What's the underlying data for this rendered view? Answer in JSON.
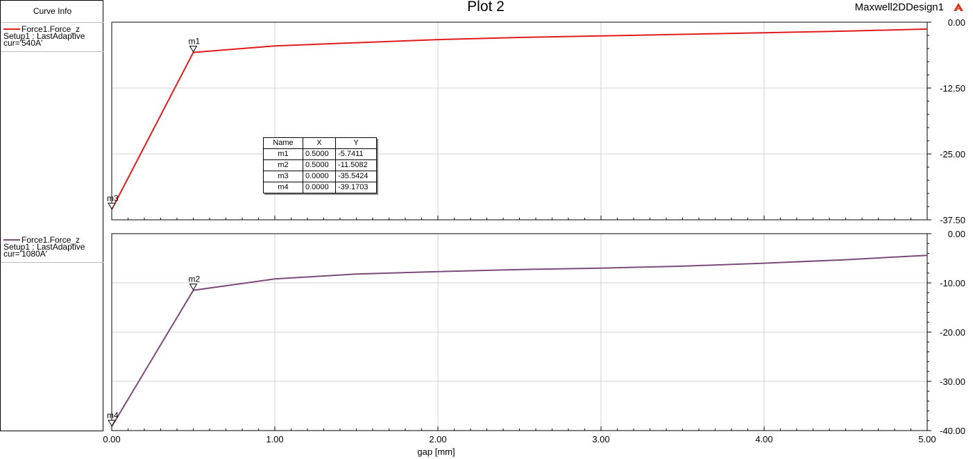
{
  "window": {
    "plot_title": "Plot 2",
    "design_name": "Maxwell2DDesign1",
    "logo_icon": "ansys-logo-icon"
  },
  "curve_info": {
    "title": "Curve Info",
    "entries": [
      {
        "name": "Force1.Force_z",
        "setup": "Setup1 : LastAdaptive",
        "variation": "cur='540A'",
        "color": "#e01b1b"
      },
      {
        "name": "Force1.Force_z",
        "setup": "Setup1 : LastAdaptive",
        "variation": "cur='1080A'",
        "color": "#7a4a78"
      }
    ]
  },
  "marker_table": {
    "headers": [
      "Name",
      "X",
      "Y"
    ],
    "rows": [
      [
        "m1",
        "0.5000",
        "-5.7411"
      ],
      [
        "m2",
        "0.5000",
        "-11.5082"
      ],
      [
        "m3",
        "0.0000",
        "-35.5424"
      ],
      [
        "m4",
        "0.0000",
        "-39.1703"
      ]
    ]
  },
  "chart_data": [
    {
      "type": "line",
      "xlabel": "gap [mm]",
      "xlim": [
        0,
        5
      ],
      "x_ticks": [
        "0.00",
        "1.00",
        "2.00",
        "3.00",
        "4.00",
        "5.00"
      ],
      "ylim": [
        -37.5,
        0
      ],
      "y_ticks": [
        "0.00",
        "-12.50",
        "-25.00",
        "-37.50"
      ],
      "grid": true,
      "series": [
        {
          "name": "Force1.Force_z",
          "color": "#e01b1b",
          "x": [
            0,
            0.5,
            1.0,
            1.5,
            2.0,
            2.5,
            3.0,
            3.5,
            4.0,
            4.5,
            5.0
          ],
          "y": [
            -35.5424,
            -5.7411,
            -4.5,
            -3.9,
            -3.3,
            -2.9,
            -2.6,
            -2.3,
            -2.0,
            -1.7,
            -1.3
          ]
        }
      ],
      "markers": [
        {
          "name": "m1",
          "x": 0.5,
          "y": -5.7411
        },
        {
          "name": "m3",
          "x": 0.0,
          "y": -35.5424
        }
      ]
    },
    {
      "type": "line",
      "xlabel": "gap [mm]",
      "xlim": [
        0,
        5
      ],
      "x_ticks": [
        "0.00",
        "1.00",
        "2.00",
        "3.00",
        "4.00",
        "5.00"
      ],
      "ylim": [
        -40,
        0
      ],
      "y_ticks": [
        "0.00",
        "-10.00",
        "-20.00",
        "-30.00",
        "-40.00"
      ],
      "grid": true,
      "series": [
        {
          "name": "Force1.Force_z",
          "color": "#7a4a78",
          "x": [
            0,
            0.5,
            1.0,
            1.5,
            2.0,
            2.5,
            3.0,
            3.5,
            4.0,
            4.5,
            5.0
          ],
          "y": [
            -39.1703,
            -11.5082,
            -9.2,
            -8.2,
            -7.7,
            -7.3,
            -7.0,
            -6.6,
            -6.0,
            -5.3,
            -4.4
          ]
        }
      ],
      "markers": [
        {
          "name": "m2",
          "x": 0.5,
          "y": -11.5082
        },
        {
          "name": "m4",
          "x": 0.0,
          "y": -39.1703
        }
      ]
    }
  ]
}
